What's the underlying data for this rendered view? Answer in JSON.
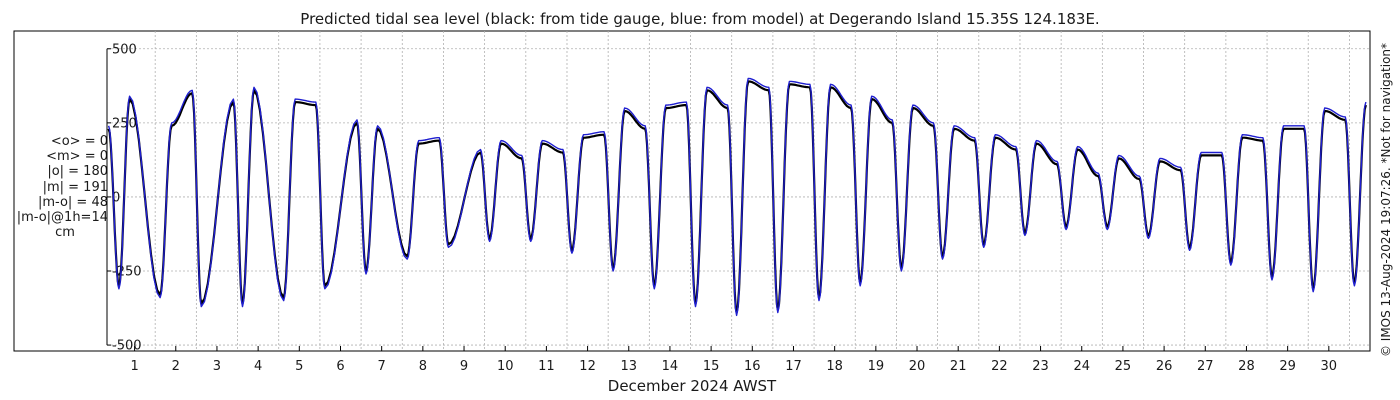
{
  "chart_data": {
    "type": "line",
    "title": "Predicted tidal sea level (black: from tide gauge, blue: from model) at Degerando Island 15.35S 124.183E.",
    "xlabel": "December 2024 AWST",
    "ylabel": "",
    "x_ticks": [
      "1",
      "2",
      "3",
      "4",
      "5",
      "6",
      "7",
      "8",
      "9",
      "10",
      "11",
      "12",
      "13",
      "14",
      "15",
      "16",
      "17",
      "18",
      "19",
      "20",
      "21",
      "22",
      "23",
      "24",
      "25",
      "26",
      "27",
      "28",
      "29",
      "30"
    ],
    "xlim": [
      0.33,
      31.0
    ],
    "ylim": [
      -520,
      560
    ],
    "y_ticks": [
      500,
      250,
      0,
      -250,
      -500
    ],
    "grid": true,
    "series": [
      {
        "name": "from tide gauge",
        "color": "#000000",
        "daily_high": [
          [
            0.37,
            230
          ],
          [
            0.88,
            330
          ],
          [
            1.9,
            240
          ],
          [
            2.4,
            350
          ],
          [
            3.4,
            320
          ],
          [
            3.9,
            360
          ],
          [
            4.9,
            320
          ],
          [
            5.4,
            310
          ],
          [
            6.4,
            250
          ],
          [
            6.9,
            230
          ],
          [
            7.9,
            180
          ],
          [
            8.4,
            190
          ],
          [
            9.4,
            150
          ],
          [
            9.9,
            180
          ],
          [
            10.4,
            130
          ],
          [
            10.9,
            180
          ],
          [
            11.4,
            150
          ],
          [
            11.9,
            200
          ],
          [
            12.4,
            210
          ],
          [
            12.9,
            290
          ],
          [
            13.4,
            230
          ],
          [
            13.9,
            300
          ],
          [
            14.4,
            310
          ],
          [
            14.9,
            360
          ],
          [
            15.4,
            300
          ],
          [
            15.9,
            390
          ],
          [
            16.4,
            360
          ],
          [
            16.9,
            380
          ],
          [
            17.4,
            370
          ],
          [
            17.9,
            370
          ],
          [
            18.4,
            300
          ],
          [
            18.9,
            330
          ],
          [
            19.4,
            250
          ],
          [
            19.9,
            300
          ],
          [
            20.4,
            240
          ],
          [
            20.9,
            230
          ],
          [
            21.4,
            190
          ],
          [
            21.9,
            200
          ],
          [
            22.4,
            160
          ],
          [
            22.9,
            180
          ],
          [
            23.4,
            110
          ],
          [
            23.9,
            160
          ],
          [
            24.4,
            70
          ],
          [
            24.9,
            130
          ],
          [
            25.4,
            60
          ],
          [
            25.9,
            120
          ],
          [
            26.4,
            90
          ],
          [
            26.9,
            140
          ],
          [
            27.4,
            140
          ],
          [
            27.9,
            200
          ],
          [
            28.4,
            190
          ],
          [
            28.9,
            230
          ],
          [
            29.4,
            230
          ],
          [
            29.9,
            290
          ],
          [
            30.4,
            260
          ],
          [
            30.9,
            310
          ]
        ],
        "daily_low": [
          [
            0.62,
            -300
          ],
          [
            1.62,
            -330
          ],
          [
            2.62,
            -360
          ],
          [
            3.62,
            -360
          ],
          [
            4.62,
            -340
          ],
          [
            5.62,
            -300
          ],
          [
            6.62,
            -250
          ],
          [
            7.62,
            -200
          ],
          [
            8.62,
            -160
          ],
          [
            9.62,
            -140
          ],
          [
            10.62,
            -140
          ],
          [
            11.62,
            -180
          ],
          [
            12.62,
            -240
          ],
          [
            13.62,
            -300
          ],
          [
            14.62,
            -360
          ],
          [
            15.62,
            -390
          ],
          [
            16.62,
            -380
          ],
          [
            17.62,
            -340
          ],
          [
            18.62,
            -290
          ],
          [
            19.62,
            -240
          ],
          [
            20.62,
            -200
          ],
          [
            21.62,
            -160
          ],
          [
            22.62,
            -120
          ],
          [
            23.62,
            -100
          ],
          [
            24.62,
            -100
          ],
          [
            25.62,
            -130
          ],
          [
            26.62,
            -170
          ],
          [
            27.62,
            -220
          ],
          [
            28.62,
            -270
          ],
          [
            29.62,
            -310
          ],
          [
            30.62,
            -290
          ]
        ]
      },
      {
        "name": "from model",
        "color": "#1f1fd0",
        "daily_high": [
          [
            0.37,
            240
          ],
          [
            0.88,
            340
          ],
          [
            1.9,
            250
          ],
          [
            2.4,
            360
          ],
          [
            3.4,
            330
          ],
          [
            3.9,
            370
          ],
          [
            4.9,
            330
          ],
          [
            5.4,
            320
          ],
          [
            6.4,
            260
          ],
          [
            6.9,
            240
          ],
          [
            7.9,
            190
          ],
          [
            8.4,
            200
          ],
          [
            9.4,
            160
          ],
          [
            9.9,
            190
          ],
          [
            10.4,
            140
          ],
          [
            10.9,
            190
          ],
          [
            11.4,
            160
          ],
          [
            11.9,
            210
          ],
          [
            12.4,
            220
          ],
          [
            12.9,
            300
          ],
          [
            13.4,
            240
          ],
          [
            13.9,
            310
          ],
          [
            14.4,
            320
          ],
          [
            14.9,
            370
          ],
          [
            15.4,
            310
          ],
          [
            15.9,
            400
          ],
          [
            16.4,
            370
          ],
          [
            16.9,
            390
          ],
          [
            17.4,
            380
          ],
          [
            17.9,
            380
          ],
          [
            18.4,
            310
          ],
          [
            18.9,
            340
          ],
          [
            19.4,
            260
          ],
          [
            19.9,
            310
          ],
          [
            20.4,
            250
          ],
          [
            20.9,
            240
          ],
          [
            21.4,
            200
          ],
          [
            21.9,
            210
          ],
          [
            22.4,
            170
          ],
          [
            22.9,
            190
          ],
          [
            23.4,
            120
          ],
          [
            23.9,
            170
          ],
          [
            24.4,
            80
          ],
          [
            24.9,
            140
          ],
          [
            25.4,
            70
          ],
          [
            25.9,
            130
          ],
          [
            26.4,
            100
          ],
          [
            26.9,
            150
          ],
          [
            27.4,
            150
          ],
          [
            27.9,
            210
          ],
          [
            28.4,
            200
          ],
          [
            28.9,
            240
          ],
          [
            29.4,
            240
          ],
          [
            29.9,
            300
          ],
          [
            30.4,
            270
          ],
          [
            30.9,
            320
          ]
        ],
        "daily_low": [
          [
            0.62,
            -310
          ],
          [
            1.62,
            -340
          ],
          [
            2.62,
            -370
          ],
          [
            3.62,
            -370
          ],
          [
            4.62,
            -350
          ],
          [
            5.62,
            -310
          ],
          [
            6.62,
            -260
          ],
          [
            7.62,
            -210
          ],
          [
            8.62,
            -170
          ],
          [
            9.62,
            -150
          ],
          [
            10.62,
            -150
          ],
          [
            11.62,
            -190
          ],
          [
            12.62,
            -250
          ],
          [
            13.62,
            -310
          ],
          [
            14.62,
            -370
          ],
          [
            15.62,
            -400
          ],
          [
            16.62,
            -390
          ],
          [
            17.62,
            -350
          ],
          [
            18.62,
            -300
          ],
          [
            19.62,
            -250
          ],
          [
            20.62,
            -210
          ],
          [
            21.62,
            -170
          ],
          [
            22.62,
            -130
          ],
          [
            23.62,
            -110
          ],
          [
            24.62,
            -110
          ],
          [
            25.62,
            -140
          ],
          [
            26.62,
            -180
          ],
          [
            27.62,
            -230
          ],
          [
            28.62,
            -280
          ],
          [
            29.62,
            -320
          ],
          [
            30.62,
            -300
          ]
        ]
      }
    ]
  },
  "stats": {
    "mean_obs": "<o> = 0",
    "mean_model": "<m> = 0",
    "abs_obs": "|o| = 180",
    "abs_model": "|m| = 191",
    "abs_diff": "|m-o| = 48",
    "abs_diff_1h": "|m-o|@1h=14",
    "unit": "cm"
  },
  "copyright": "© IMOS 13-Aug-2024 19:07:26. *Not for navigation*",
  "colors": {
    "grid": "#b0b0b0",
    "axis": "#000000",
    "text": "#1a1a1a"
  }
}
